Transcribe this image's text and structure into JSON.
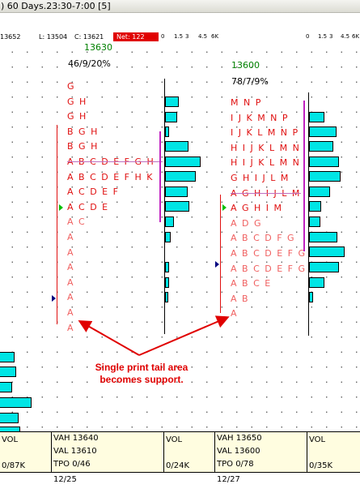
{
  "window": {
    "title": ") 60 Days.23:30-7:00 [5]"
  },
  "quote": {
    "open": "13652",
    "low": "L: 13504",
    "close": "C: 13621",
    "net": "Net: 122"
  },
  "volume_scale": [
    "0",
    "1.5",
    "3",
    "4.5",
    "6K"
  ],
  "profiles": [
    {
      "date": "12/25",
      "price": "13630",
      "stats": "46/9/20%",
      "vah": "VAH 13640",
      "val": "VAL  13610",
      "tpo": "TPO 0/46",
      "vol_label": "VOL",
      "vol_total": "0/24K",
      "rows": [
        "G",
        "G H",
        "G H",
        "B G H",
        "B G H",
        "A B C D E F G H I",
        "A B C D E F H K",
        "A C D E F",
        "A C D E",
        "A C",
        "A",
        "A",
        "A",
        "A",
        "A",
        "A",
        "A"
      ]
    },
    {
      "date": "12/27",
      "price": "13600",
      "stats": "78/7/9%",
      "vah": "VAH 13650",
      "val": "VAL  13600",
      "tpo": "TPO 0/78",
      "vol_label": "VOL",
      "vol_total": "0/35K",
      "rows": [
        "M N P",
        "I J K M N P",
        "I J K L M N P",
        "H I J K L M N",
        "H I J K L M N",
        "G H I J L M",
        "A G H I J L M",
        "A G H I M",
        "A D G",
        "A B C D F G",
        "A B C D E F G",
        "A B C D E F G",
        "A B C E",
        "A B",
        "A"
      ]
    }
  ],
  "left_footer": {
    "vol_label": "VOL",
    "vol_total": "0/87K"
  },
  "annotation": {
    "line1": "Single print tail area",
    "line2": "becomes support."
  },
  "colors": {
    "tpo": "#e01010",
    "volume_bar": "#00e5e5",
    "value_area": "#c020c0",
    "annotation": "#e00000",
    "info_bar": "#fffde0"
  }
}
